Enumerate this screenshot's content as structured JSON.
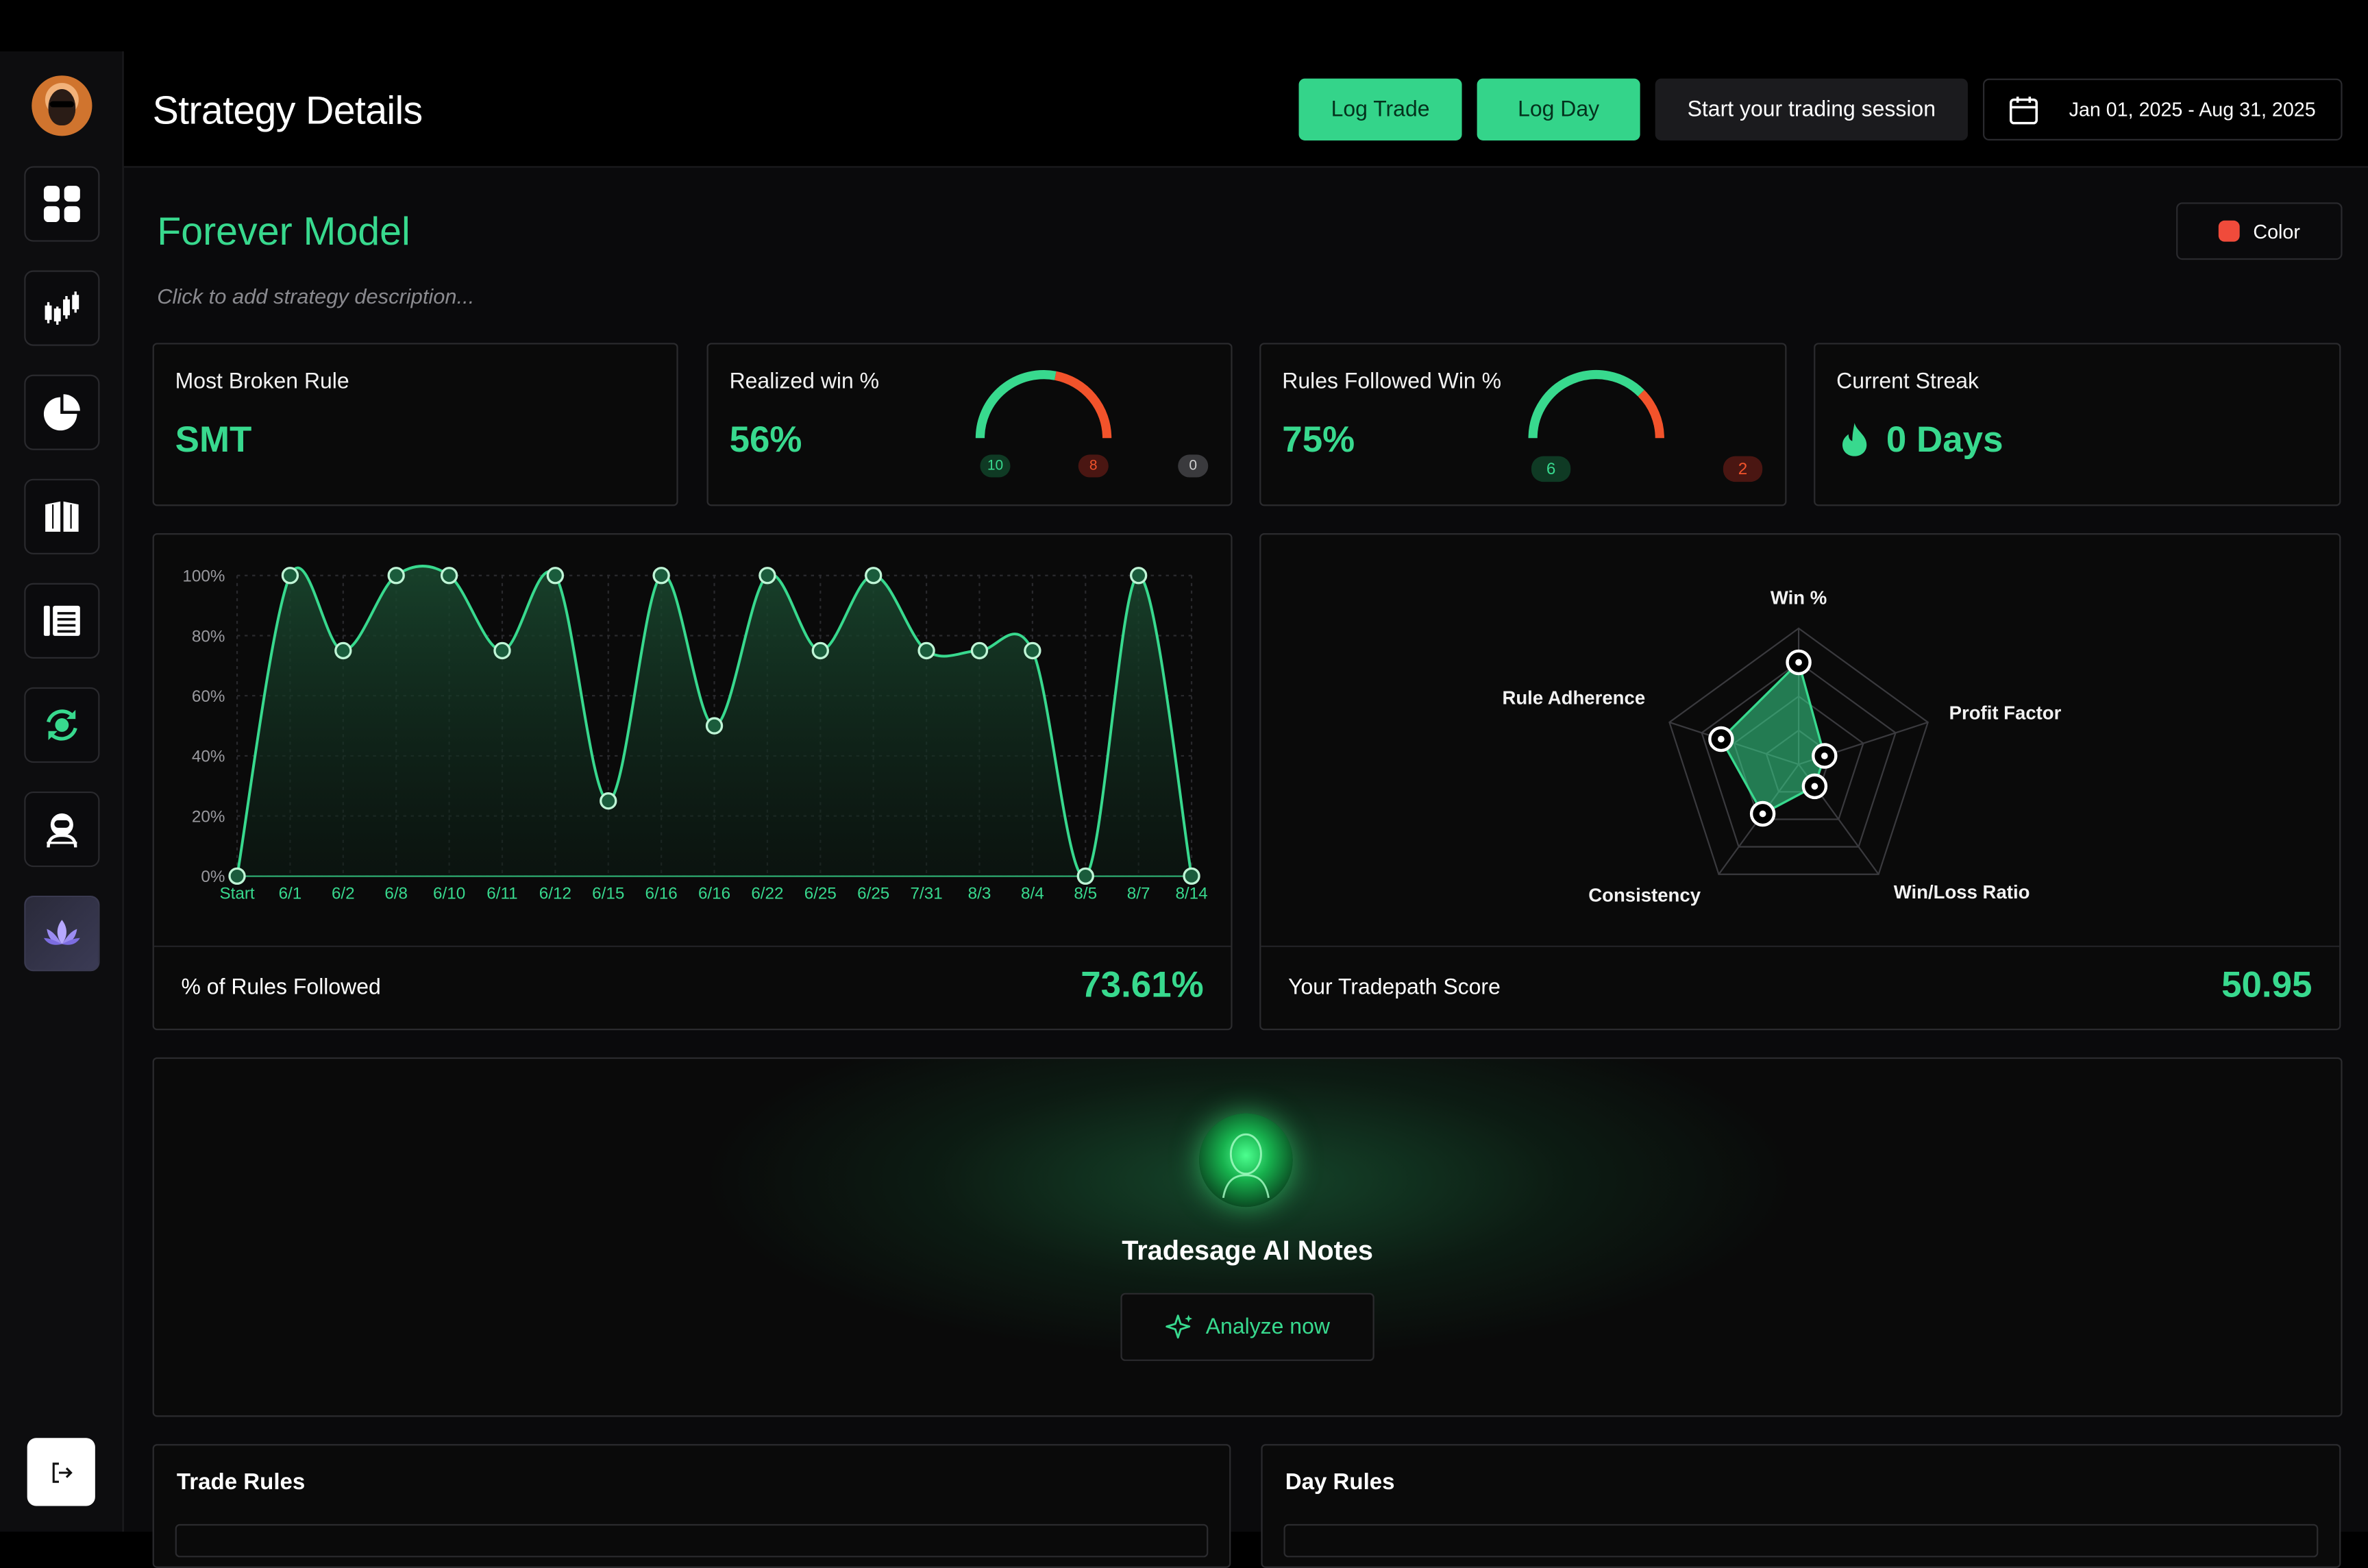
{
  "header": {
    "title": "Strategy Details",
    "log_trade": "Log Trade",
    "log_day": "Log Day",
    "start_session": "Start your trading session",
    "date_range": "Jan 01, 2025 - Aug 31, 2025"
  },
  "sidebar": {
    "items": [
      "dashboard",
      "trades",
      "reports",
      "playbook",
      "journal",
      "replay",
      "mentor",
      "zen"
    ],
    "active": "zen"
  },
  "strategy": {
    "name": "Forever Model",
    "description_placeholder": "Click to add strategy description...",
    "color_label": "Color",
    "color": "#f04b3b"
  },
  "stats": {
    "most_broken_rule": {
      "label": "Most Broken Rule",
      "value": "SMT"
    },
    "realized_win": {
      "label": "Realized win %",
      "value": "56%",
      "wins": "10",
      "losses": "8",
      "breakeven": "0",
      "win_fraction": 0.56
    },
    "rules_followed_win": {
      "label": "Rules Followed Win %",
      "value": "75%",
      "wins": "6",
      "losses": "2",
      "win_fraction": 0.75
    },
    "current_streak": {
      "label": "Current Streak",
      "value": "0 Days"
    }
  },
  "rules_chart": {
    "footer_label": "% of Rules Followed",
    "footer_value": "73.61%"
  },
  "score_chart": {
    "footer_label": "Your Tradepath Score",
    "footer_value": "50.95"
  },
  "chart_data": [
    {
      "type": "area",
      "x": [
        "Start",
        "6/1",
        "6/2",
        "6/8",
        "6/10",
        "6/11",
        "6/12",
        "6/15",
        "6/16",
        "6/16",
        "6/22",
        "6/25",
        "6/25",
        "7/31",
        "8/3",
        "8/4",
        "8/5",
        "8/7",
        "8/14"
      ],
      "y": [
        0,
        100,
        75,
        100,
        100,
        75,
        100,
        25,
        100,
        50,
        100,
        75,
        100,
        75,
        75,
        75,
        0,
        100,
        0
      ],
      "y_ticks": [
        "0%",
        "20%",
        "40%",
        "60%",
        "80%",
        "100%"
      ],
      "ylim": [
        0,
        100
      ],
      "grid": true,
      "color": "#38d98e"
    },
    {
      "type": "radar",
      "axes": [
        "Win %",
        "Profit Factor",
        "Win/Loss Ratio",
        "Consistency",
        "Rule Adherence"
      ],
      "values": [
        0.75,
        0.2,
        0.2,
        0.45,
        0.6
      ],
      "max": 1,
      "rings": 4,
      "color": "#38d98e"
    }
  ],
  "ai_notes": {
    "title": "Tradesage AI Notes",
    "button": "Analyze now"
  },
  "rules": {
    "trade_rules": "Trade Rules",
    "day_rules": "Day Rules"
  }
}
